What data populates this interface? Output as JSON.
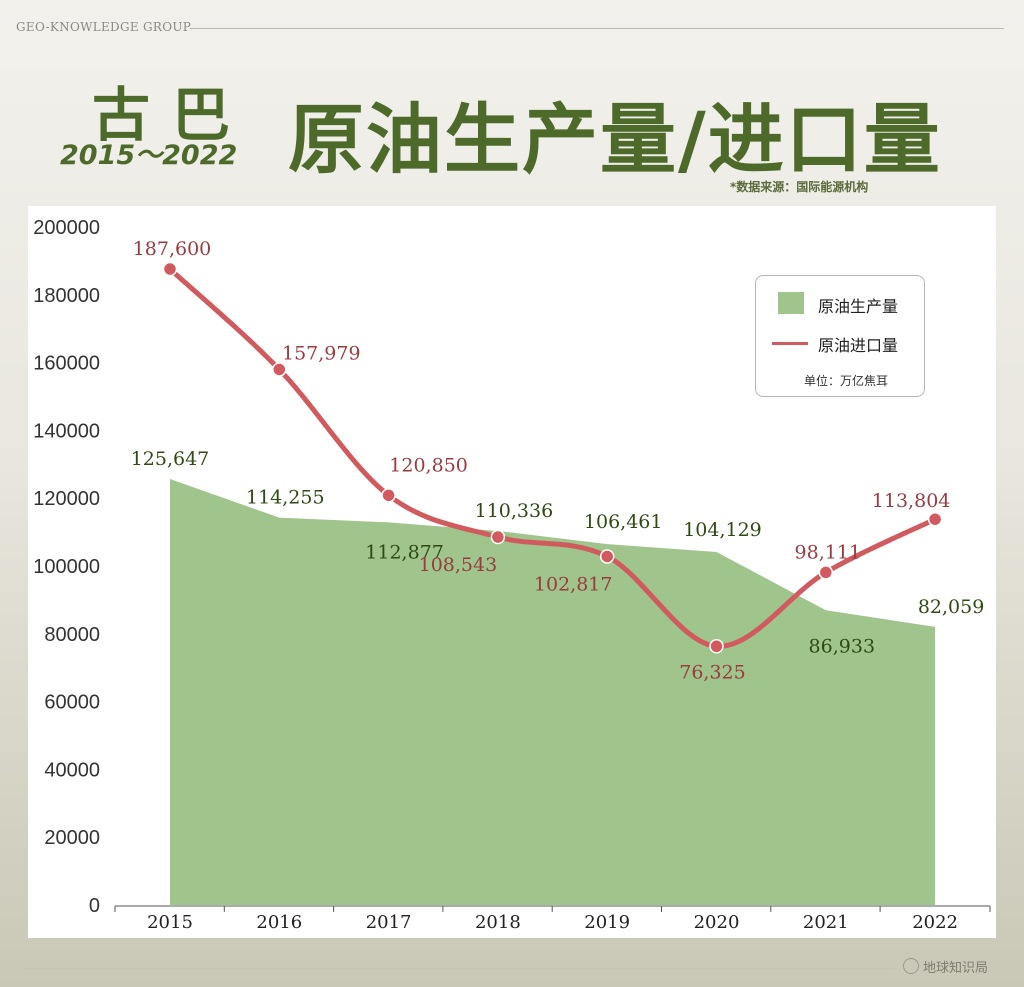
{
  "header": {
    "brand": "GEO-KNOWLEDGE GROUP",
    "country": "古巴",
    "years": "2015～2022",
    "title": "原油生产量/进口量",
    "source": "*数据来源：国际能源机构"
  },
  "legend": {
    "production": "原油生产量",
    "imports": "原油进口量",
    "unit": "单位：万亿焦耳"
  },
  "footer": {
    "brand": "地球知识局"
  },
  "colors": {
    "area": "#9fc48c",
    "line": "#d05a5e",
    "title": "#4e6a2b",
    "production_label": "#2f4a14",
    "import_label": "#9a3b3f"
  },
  "chart_data": {
    "type": "area",
    "title": "原油生产量/进口量",
    "x": [
      "2015",
      "2016",
      "2017",
      "2018",
      "2019",
      "2020",
      "2021",
      "2022"
    ],
    "ylim": [
      0,
      200000
    ],
    "yticks": [
      0,
      20000,
      40000,
      60000,
      80000,
      100000,
      120000,
      140000,
      160000,
      180000,
      200000
    ],
    "grid": false,
    "legend_position": "top-right",
    "series": [
      {
        "name": "原油生产量",
        "type": "area",
        "values": [
          125647,
          114255,
          112877,
          110336,
          106461,
          104129,
          86933,
          82059
        ],
        "labels": [
          "125,647",
          "114,255",
          "112,877",
          "110,336",
          "106,461",
          "104,129",
          "86,933",
          "82,059"
        ]
      },
      {
        "name": "原油进口量",
        "type": "line",
        "values": [
          187600,
          157979,
          120850,
          108543,
          102817,
          76325,
          98111,
          113804
        ],
        "labels": [
          "187,600",
          "157,979",
          "120,850",
          "108,543",
          "102,817",
          "76,325",
          "98,111",
          "113,804"
        ]
      }
    ]
  }
}
